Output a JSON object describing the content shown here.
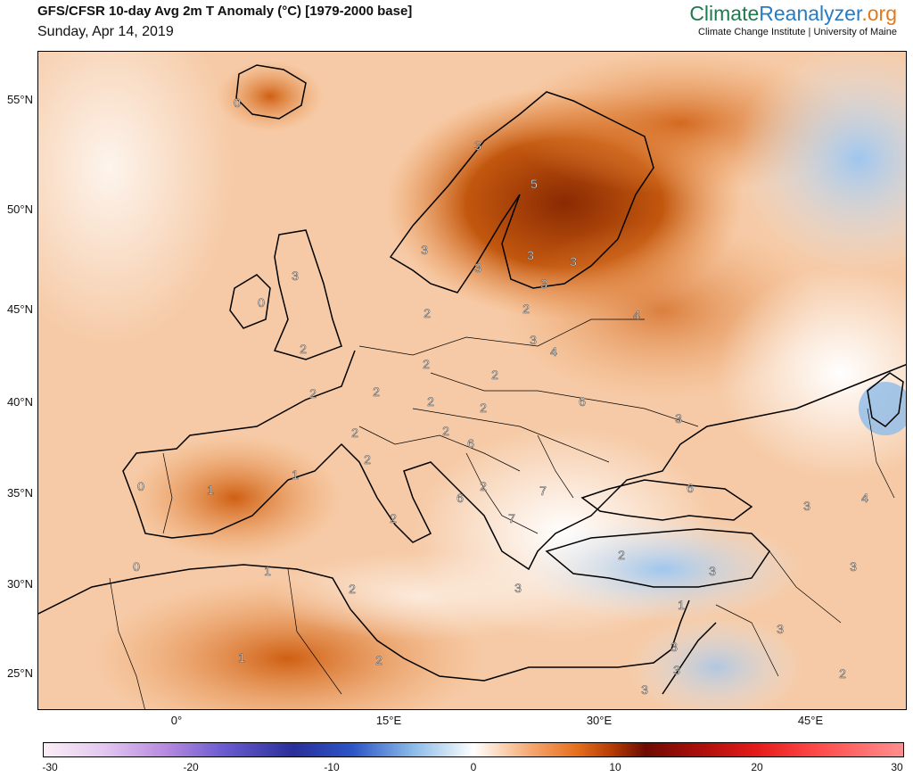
{
  "header": {
    "title": "GFS/CFSR 10-day Avg 2m T Anomaly (°C) [1979-2000 base]",
    "date": "Sunday, Apr 14, 2019"
  },
  "brand": {
    "part1": "Climate",
    "part2": "Reanalyzer",
    "part3": ".org",
    "subtitle": "Climate Change Institute | University of Maine"
  },
  "axes": {
    "lat_labels": [
      "55°N",
      "50°N",
      "45°N",
      "40°N",
      "35°N",
      "30°N",
      "25°N"
    ],
    "lon_labels": [
      "0°",
      "15°E",
      "30°E",
      "45°E"
    ]
  },
  "map_labels": {
    "iceland": "0",
    "norway_coast": "3",
    "sweden": "3",
    "finland": "5",
    "st_petersburg": "3",
    "baltic_south": "3",
    "estonia": "3",
    "latvia": "3",
    "lithuania": "2",
    "russia_west": "4",
    "belarus": "3",
    "belarus_south": "4",
    "denmark": "2",
    "scotland": "3",
    "ireland": "0",
    "england": "2",
    "france": "2",
    "germany_w": "2",
    "germany_e": "2",
    "poland": "2",
    "ukraine": "6",
    "czech": "2",
    "slovakia": "2",
    "austria": "2",
    "hungary": "6",
    "swiss": "2",
    "alps_s": "2",
    "croatia": "6",
    "serbia": "2",
    "romania": "7",
    "bulgaria": "7",
    "russia_south": "3",
    "black_sea": "6",
    "caspian_w": "3",
    "caspian_e": "4",
    "italy_s": "2",
    "portugal": "0",
    "spain": "1",
    "catalonia": "1",
    "morocco": "0",
    "algeria_n": "1",
    "tunisia": "2",
    "sahara": "1",
    "libya": "2",
    "turkey": "2",
    "turkey_e": "3",
    "iran": "3",
    "greece": "3",
    "levant": "1",
    "syria": "3",
    "iraq": "3",
    "jordan": "3",
    "egypt_sinai": "3",
    "persian": "2"
  },
  "colorbar": {
    "ticks": [
      "-30",
      "-20",
      "-10",
      "0",
      "10",
      "20",
      "30"
    ],
    "min": -30,
    "max": 30
  }
}
